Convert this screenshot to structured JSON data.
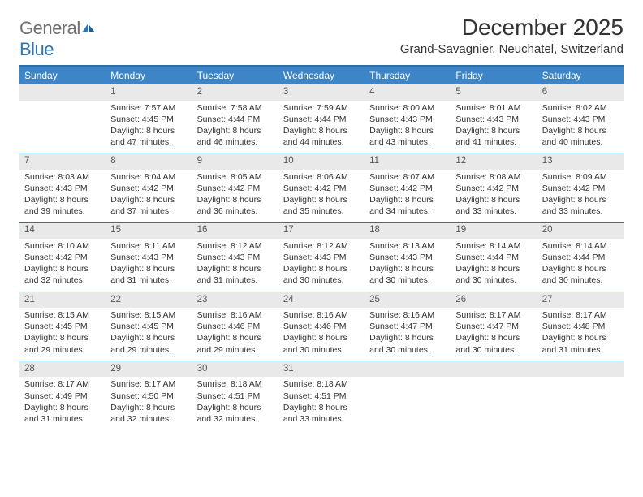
{
  "brand": {
    "part1": "General",
    "part2": "Blue"
  },
  "title": "December 2025",
  "location": "Grand-Savagnier, Neuchatel, Switzerland",
  "colors": {
    "header_bg": "#3d85c6",
    "border": "#2b6fa8",
    "daynum_bg": "#e9e9e9",
    "text": "#333333",
    "logo_gray": "#6f6f6f"
  },
  "weekdays": [
    "Sunday",
    "Monday",
    "Tuesday",
    "Wednesday",
    "Thursday",
    "Friday",
    "Saturday"
  ],
  "weeks": [
    [
      {
        "n": "",
        "sr": "",
        "ss": "",
        "dl": ""
      },
      {
        "n": "1",
        "sr": "Sunrise: 7:57 AM",
        "ss": "Sunset: 4:45 PM",
        "dl": "Daylight: 8 hours and 47 minutes."
      },
      {
        "n": "2",
        "sr": "Sunrise: 7:58 AM",
        "ss": "Sunset: 4:44 PM",
        "dl": "Daylight: 8 hours and 46 minutes."
      },
      {
        "n": "3",
        "sr": "Sunrise: 7:59 AM",
        "ss": "Sunset: 4:44 PM",
        "dl": "Daylight: 8 hours and 44 minutes."
      },
      {
        "n": "4",
        "sr": "Sunrise: 8:00 AM",
        "ss": "Sunset: 4:43 PM",
        "dl": "Daylight: 8 hours and 43 minutes."
      },
      {
        "n": "5",
        "sr": "Sunrise: 8:01 AM",
        "ss": "Sunset: 4:43 PM",
        "dl": "Daylight: 8 hours and 41 minutes."
      },
      {
        "n": "6",
        "sr": "Sunrise: 8:02 AM",
        "ss": "Sunset: 4:43 PM",
        "dl": "Daylight: 8 hours and 40 minutes."
      }
    ],
    [
      {
        "n": "7",
        "sr": "Sunrise: 8:03 AM",
        "ss": "Sunset: 4:43 PM",
        "dl": "Daylight: 8 hours and 39 minutes."
      },
      {
        "n": "8",
        "sr": "Sunrise: 8:04 AM",
        "ss": "Sunset: 4:42 PM",
        "dl": "Daylight: 8 hours and 37 minutes."
      },
      {
        "n": "9",
        "sr": "Sunrise: 8:05 AM",
        "ss": "Sunset: 4:42 PM",
        "dl": "Daylight: 8 hours and 36 minutes."
      },
      {
        "n": "10",
        "sr": "Sunrise: 8:06 AM",
        "ss": "Sunset: 4:42 PM",
        "dl": "Daylight: 8 hours and 35 minutes."
      },
      {
        "n": "11",
        "sr": "Sunrise: 8:07 AM",
        "ss": "Sunset: 4:42 PM",
        "dl": "Daylight: 8 hours and 34 minutes."
      },
      {
        "n": "12",
        "sr": "Sunrise: 8:08 AM",
        "ss": "Sunset: 4:42 PM",
        "dl": "Daylight: 8 hours and 33 minutes."
      },
      {
        "n": "13",
        "sr": "Sunrise: 8:09 AM",
        "ss": "Sunset: 4:42 PM",
        "dl": "Daylight: 8 hours and 33 minutes."
      }
    ],
    [
      {
        "n": "14",
        "sr": "Sunrise: 8:10 AM",
        "ss": "Sunset: 4:42 PM",
        "dl": "Daylight: 8 hours and 32 minutes."
      },
      {
        "n": "15",
        "sr": "Sunrise: 8:11 AM",
        "ss": "Sunset: 4:43 PM",
        "dl": "Daylight: 8 hours and 31 minutes."
      },
      {
        "n": "16",
        "sr": "Sunrise: 8:12 AM",
        "ss": "Sunset: 4:43 PM",
        "dl": "Daylight: 8 hours and 31 minutes."
      },
      {
        "n": "17",
        "sr": "Sunrise: 8:12 AM",
        "ss": "Sunset: 4:43 PM",
        "dl": "Daylight: 8 hours and 30 minutes."
      },
      {
        "n": "18",
        "sr": "Sunrise: 8:13 AM",
        "ss": "Sunset: 4:43 PM",
        "dl": "Daylight: 8 hours and 30 minutes."
      },
      {
        "n": "19",
        "sr": "Sunrise: 8:14 AM",
        "ss": "Sunset: 4:44 PM",
        "dl": "Daylight: 8 hours and 30 minutes."
      },
      {
        "n": "20",
        "sr": "Sunrise: 8:14 AM",
        "ss": "Sunset: 4:44 PM",
        "dl": "Daylight: 8 hours and 30 minutes."
      }
    ],
    [
      {
        "n": "21",
        "sr": "Sunrise: 8:15 AM",
        "ss": "Sunset: 4:45 PM",
        "dl": "Daylight: 8 hours and 29 minutes."
      },
      {
        "n": "22",
        "sr": "Sunrise: 8:15 AM",
        "ss": "Sunset: 4:45 PM",
        "dl": "Daylight: 8 hours and 29 minutes."
      },
      {
        "n": "23",
        "sr": "Sunrise: 8:16 AM",
        "ss": "Sunset: 4:46 PM",
        "dl": "Daylight: 8 hours and 29 minutes."
      },
      {
        "n": "24",
        "sr": "Sunrise: 8:16 AM",
        "ss": "Sunset: 4:46 PM",
        "dl": "Daylight: 8 hours and 30 minutes."
      },
      {
        "n": "25",
        "sr": "Sunrise: 8:16 AM",
        "ss": "Sunset: 4:47 PM",
        "dl": "Daylight: 8 hours and 30 minutes."
      },
      {
        "n": "26",
        "sr": "Sunrise: 8:17 AM",
        "ss": "Sunset: 4:47 PM",
        "dl": "Daylight: 8 hours and 30 minutes."
      },
      {
        "n": "27",
        "sr": "Sunrise: 8:17 AM",
        "ss": "Sunset: 4:48 PM",
        "dl": "Daylight: 8 hours and 31 minutes."
      }
    ],
    [
      {
        "n": "28",
        "sr": "Sunrise: 8:17 AM",
        "ss": "Sunset: 4:49 PM",
        "dl": "Daylight: 8 hours and 31 minutes."
      },
      {
        "n": "29",
        "sr": "Sunrise: 8:17 AM",
        "ss": "Sunset: 4:50 PM",
        "dl": "Daylight: 8 hours and 32 minutes."
      },
      {
        "n": "30",
        "sr": "Sunrise: 8:18 AM",
        "ss": "Sunset: 4:51 PM",
        "dl": "Daylight: 8 hours and 32 minutes."
      },
      {
        "n": "31",
        "sr": "Sunrise: 8:18 AM",
        "ss": "Sunset: 4:51 PM",
        "dl": "Daylight: 8 hours and 33 minutes."
      },
      {
        "n": "",
        "sr": "",
        "ss": "",
        "dl": ""
      },
      {
        "n": "",
        "sr": "",
        "ss": "",
        "dl": ""
      },
      {
        "n": "",
        "sr": "",
        "ss": "",
        "dl": ""
      }
    ]
  ]
}
